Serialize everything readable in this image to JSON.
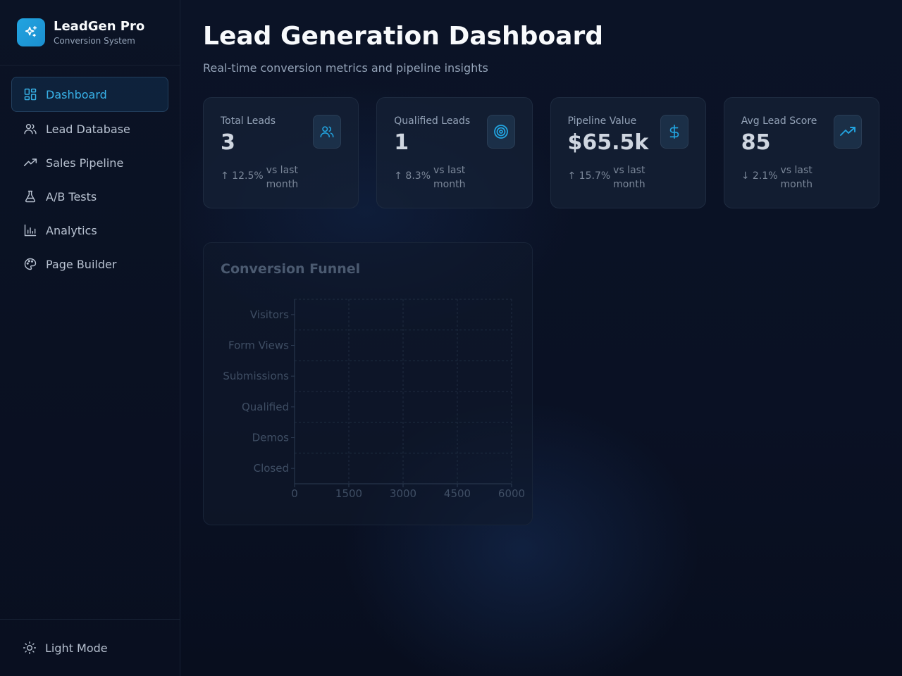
{
  "brand": {
    "title": "LeadGen Pro",
    "subtitle": "Conversion System"
  },
  "nav": {
    "items": [
      {
        "label": "Dashboard",
        "icon": "grid-icon",
        "active": true
      },
      {
        "label": "Lead Database",
        "icon": "users-icon"
      },
      {
        "label": "Sales Pipeline",
        "icon": "trending-up-icon"
      },
      {
        "label": "A/B Tests",
        "icon": "flask-icon"
      },
      {
        "label": "Analytics",
        "icon": "bar-chart-icon"
      },
      {
        "label": "Page Builder",
        "icon": "palette-icon"
      }
    ],
    "theme_toggle": "Light Mode"
  },
  "header": {
    "title": "Lead Generation Dashboard",
    "subtitle": "Real-time conversion metrics and pipeline insights"
  },
  "stats": [
    {
      "label": "Total Leads",
      "value": "3",
      "trend": "↑ 12.5%",
      "vs": "vs last month",
      "icon": "users-icon"
    },
    {
      "label": "Qualified Leads",
      "value": "1",
      "trend": "↑ 8.3%",
      "vs": "vs last month",
      "icon": "target-icon"
    },
    {
      "label": "Pipeline Value",
      "value": "$65.5k",
      "trend": "↑ 15.7%",
      "vs": "vs last month",
      "icon": "dollar-icon"
    },
    {
      "label": "Avg Lead Score",
      "value": "85",
      "trend": "↓ 2.1%",
      "vs": "vs last month",
      "icon": "trending-up-icon"
    }
  ],
  "colors": {
    "accent": "#22a4e0",
    "muted": "#94a3b8"
  },
  "chart_data": {
    "type": "bar",
    "title": "Conversion Funnel",
    "categories": [
      "Visitors",
      "Form Views",
      "Submissions",
      "Qualified",
      "Demos",
      "Closed"
    ],
    "values": [
      0,
      0,
      0,
      0,
      0,
      0
    ],
    "x_ticks": [
      "0",
      "1500",
      "3000",
      "4500",
      "6000"
    ],
    "xlim": [
      0,
      6000
    ],
    "orientation": "horizontal",
    "grid": true
  }
}
